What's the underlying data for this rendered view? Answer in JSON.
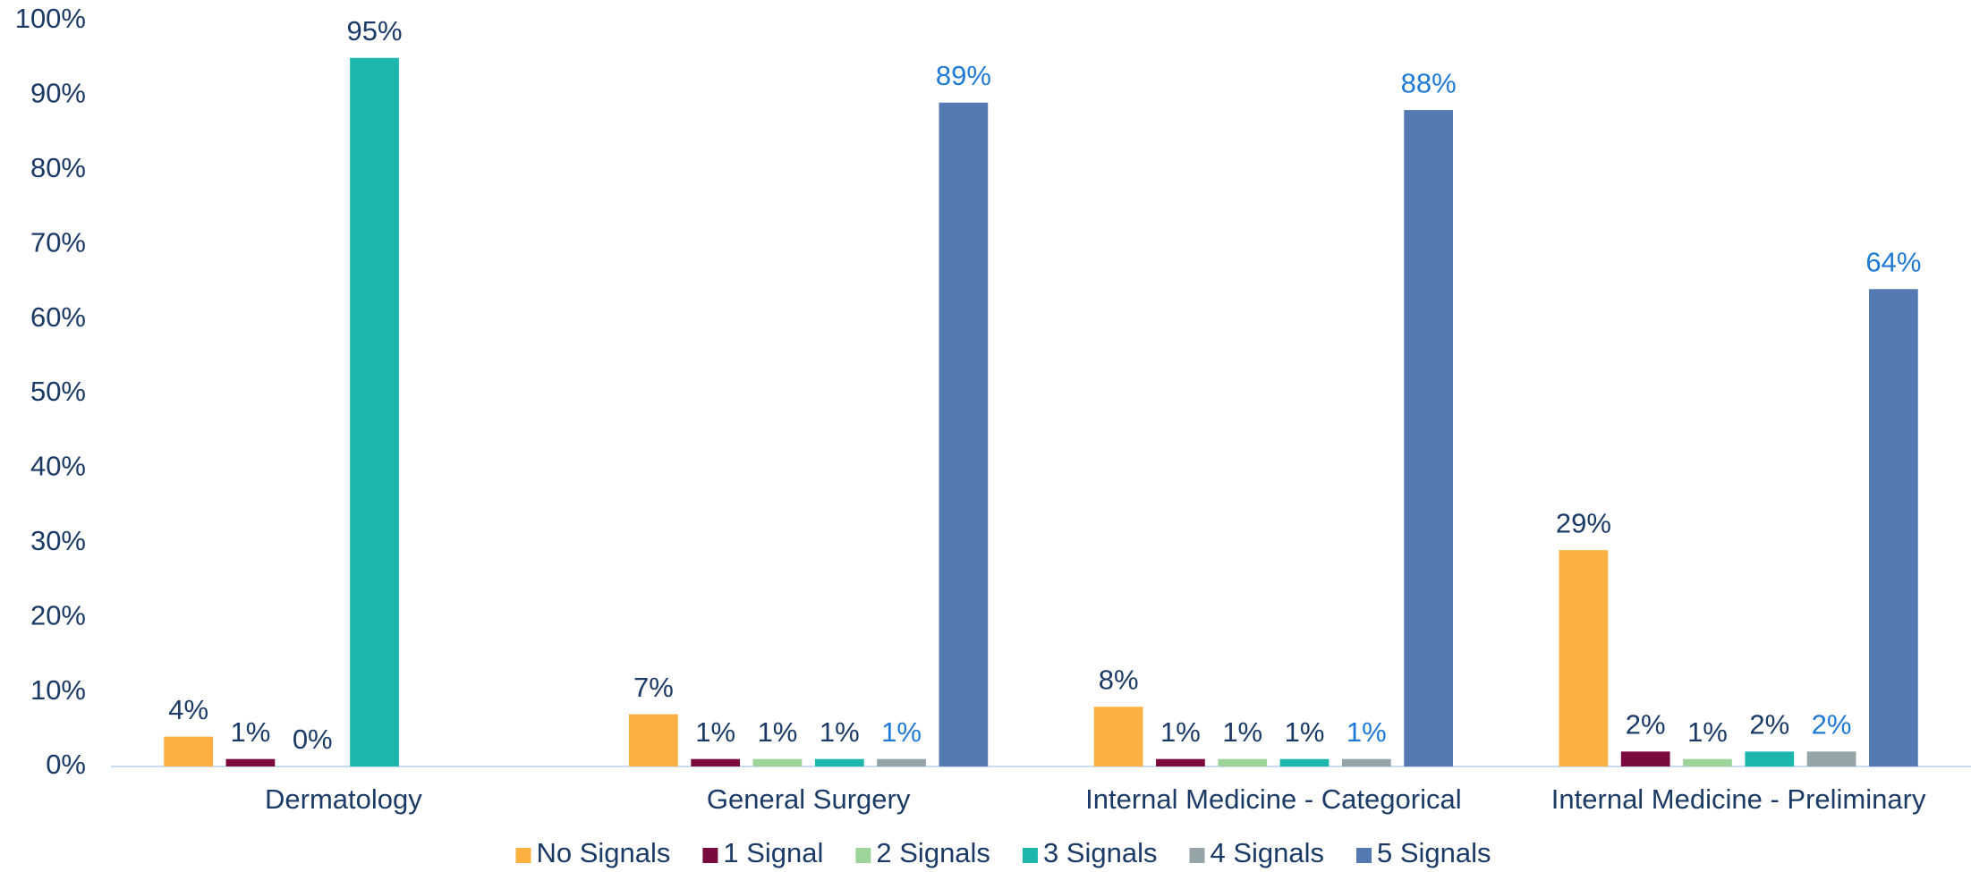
{
  "chart_data": {
    "type": "bar",
    "categories": [
      "Dermatology",
      "General Surgery",
      "Internal Medicine - Categorical",
      "Internal Medicine - Preliminary"
    ],
    "series": [
      {
        "name": "No Signals",
        "color": "#FBB040",
        "values": [
          4,
          7,
          8,
          29
        ],
        "value_labels": [
          "4%",
          "7%",
          "8%",
          "29%"
        ]
      },
      {
        "name": "1 Signal",
        "color": "#7A0A3D",
        "values": [
          1,
          1,
          1,
          2
        ],
        "value_labels": [
          "1%",
          "1%",
          "1%",
          "2%"
        ]
      },
      {
        "name": "2 Signals",
        "color": "#9DD49A",
        "values": [
          0,
          1,
          1,
          1
        ],
        "value_labels": [
          "0%",
          "1%",
          "1%",
          "1%"
        ]
      },
      {
        "name": "3 Signals",
        "color": "#1DB6AD",
        "values": [
          95,
          1,
          1,
          2
        ],
        "value_labels": [
          "95%",
          "1%",
          "1%",
          "2%"
        ]
      },
      {
        "name": "4 Signals",
        "color": "#95A4A6",
        "label_color": "#1F7AD6",
        "values": [
          null,
          1,
          1,
          2
        ],
        "value_labels": [
          null,
          "1%",
          "1%",
          "2%"
        ]
      },
      {
        "name": "5 Signals",
        "color": "#557AB3",
        "label_color": "#1F7AD6",
        "values": [
          null,
          89,
          88,
          64
        ],
        "value_labels": [
          null,
          "89%",
          "88%",
          "64%"
        ]
      }
    ],
    "ylim": [
      0,
      100
    ],
    "yticks": [
      {
        "value": 0,
        "label": "0%"
      },
      {
        "value": 10,
        "label": "10%"
      },
      {
        "value": 20,
        "label": "20%"
      },
      {
        "value": 30,
        "label": "30%"
      },
      {
        "value": 40,
        "label": "40%"
      },
      {
        "value": 50,
        "label": "50%"
      },
      {
        "value": 60,
        "label": "60%"
      },
      {
        "value": 70,
        "label": "70%"
      },
      {
        "value": 80,
        "label": "80%"
      },
      {
        "value": 90,
        "label": "90%"
      },
      {
        "value": 100,
        "label": "100%"
      }
    ],
    "grid": false,
    "legend": "bottom"
  }
}
